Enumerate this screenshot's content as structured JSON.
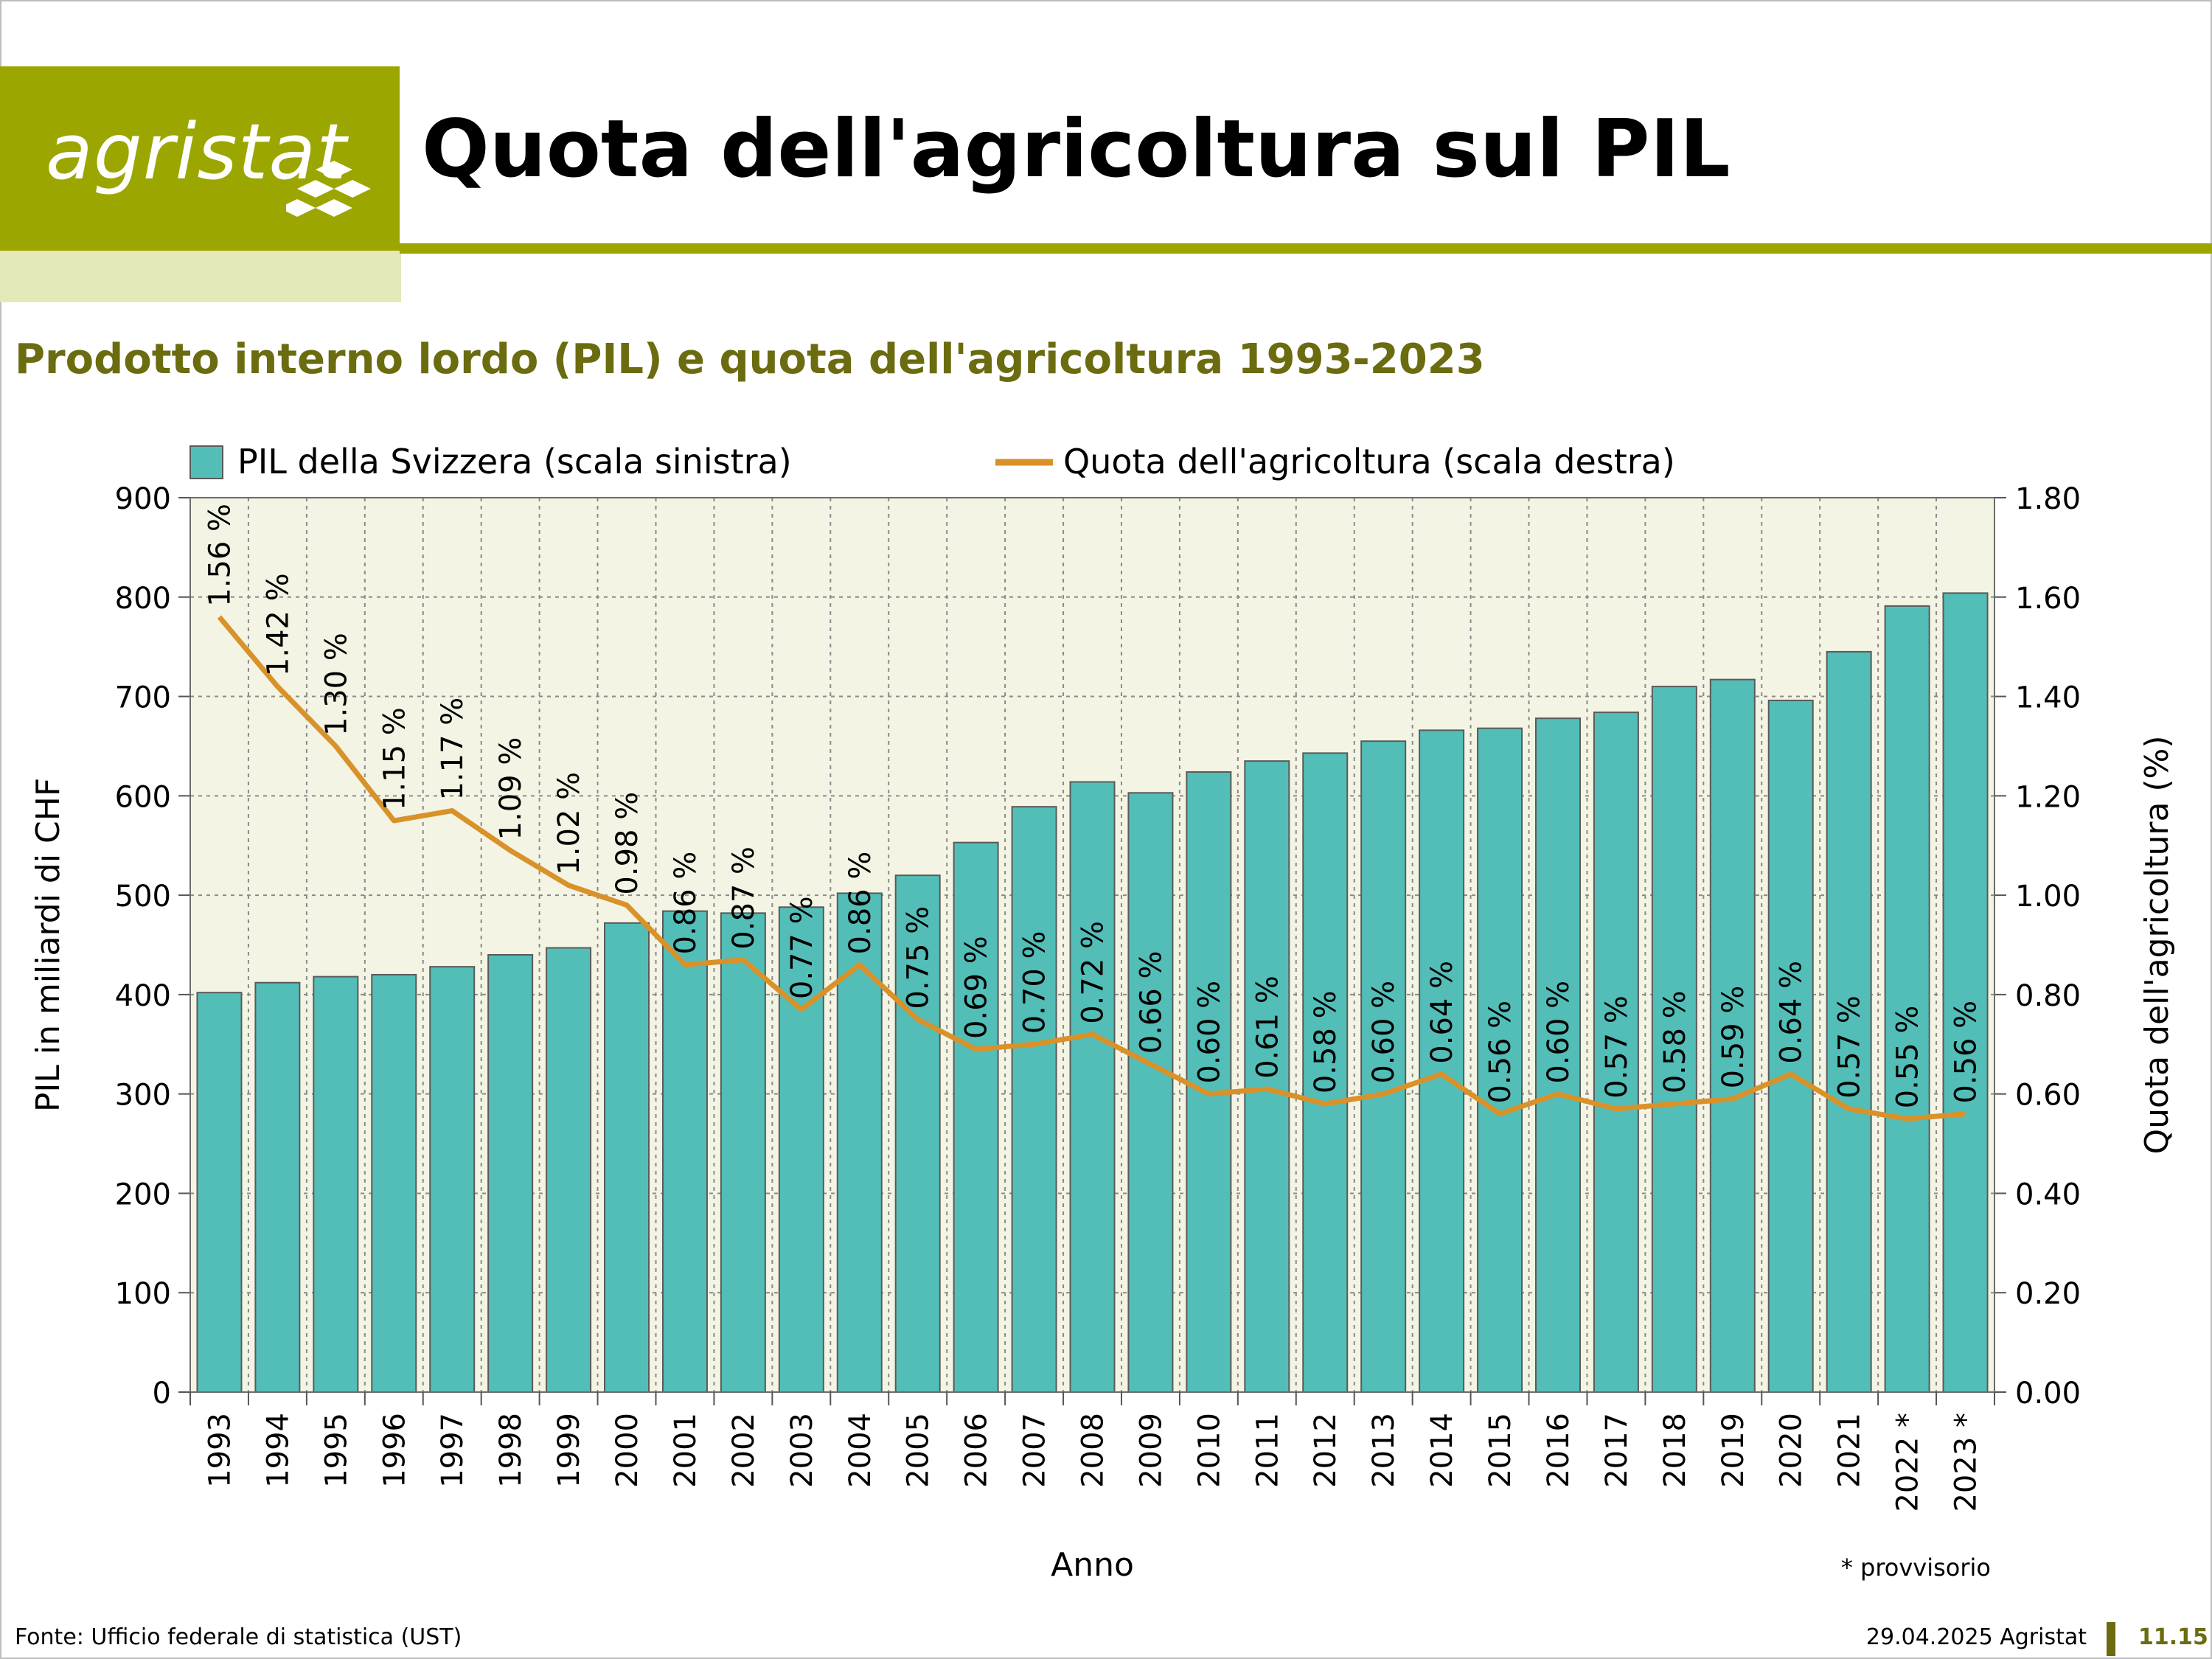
{
  "header": {
    "logo_text": "agristat",
    "title": "Quota dell'agricoltura sul PIL"
  },
  "colors": {
    "brand": "#9ca600",
    "brand_light": "#e5e8b8",
    "subtitle": "#6b6b10",
    "plot_bg": "#f3f4e3",
    "bar": "#53beb8",
    "line": "#d9912a"
  },
  "chart_data": {
    "type": "bar",
    "title": "Prodotto interno lordo (PIL) e quota dell'agricoltura 1993-2023",
    "xlabel": "Anno",
    "ylabel": "PIL in miliardi di CHF",
    "ylabel_right": "Quota dell'agricoltura (%)",
    "categories": [
      "1993",
      "1994",
      "1995",
      "1996",
      "1997",
      "1998",
      "1999",
      "2000",
      "2001",
      "2002",
      "2003",
      "2004",
      "2005",
      "2006",
      "2007",
      "2008",
      "2009",
      "2010",
      "2011",
      "2012",
      "2013",
      "2014",
      "2015",
      "2016",
      "2017",
      "2018",
      "2019",
      "2020",
      "2021",
      "2022 *",
      "2023 *"
    ],
    "ylim": [
      0,
      900
    ],
    "yticks": [
      "0",
      "100",
      "200",
      "300",
      "400",
      "500",
      "600",
      "700",
      "800",
      "900"
    ],
    "ylim_right": [
      0,
      1.8
    ],
    "yticks_right": [
      "0.00",
      "0.20",
      "0.40",
      "0.60",
      "0.80",
      "1.00",
      "1.20",
      "1.40",
      "1.60",
      "1.80"
    ],
    "grid": true,
    "legend_position": "top",
    "series": [
      {
        "name": "PIL della Svizzera (scala sinistra)",
        "type": "bar",
        "axis": "left",
        "values": [
          402,
          412,
          418,
          420,
          428,
          440,
          447,
          472,
          484,
          482,
          488,
          502,
          520,
          553,
          589,
          614,
          603,
          624,
          635,
          643,
          655,
          666,
          668,
          678,
          684,
          710,
          717,
          696,
          745,
          791,
          804
        ]
      },
      {
        "name": "Quota dell'agricoltura (scala destra)",
        "type": "line",
        "axis": "right",
        "values": [
          1.56,
          1.42,
          1.3,
          1.15,
          1.17,
          1.09,
          1.02,
          0.98,
          0.86,
          0.87,
          0.77,
          0.86,
          0.75,
          0.69,
          0.7,
          0.72,
          0.66,
          0.6,
          0.61,
          0.58,
          0.6,
          0.64,
          0.56,
          0.6,
          0.57,
          0.58,
          0.59,
          0.64,
          0.57,
          0.55,
          0.56
        ],
        "labels": [
          "1.56 %",
          "1.42 %",
          "1.30 %",
          "1.15 %",
          "1.17 %",
          "1.09 %",
          "1.02 %",
          "0.98 %",
          "0.86 %",
          "0.87 %",
          "0.77 %",
          "0.86 %",
          "0.75 %",
          "0.69 %",
          "0.70 %",
          "0.72 %",
          "0.66 %",
          "0.60 %",
          "0.61 %",
          "0.58 %",
          "0.60 %",
          "0.64 %",
          "0.56 %",
          "0.60 %",
          "0.57 %",
          "0.58 %",
          "0.59 %",
          "0.64 %",
          "0.57 %",
          "0.55 %",
          "0.56 %"
        ]
      }
    ],
    "note": "* provvisorio"
  },
  "footer": {
    "source": "Fonte: Ufficio federale di statistica (UST)",
    "date": "29.04.2025 Agristat",
    "page": "11.15"
  }
}
